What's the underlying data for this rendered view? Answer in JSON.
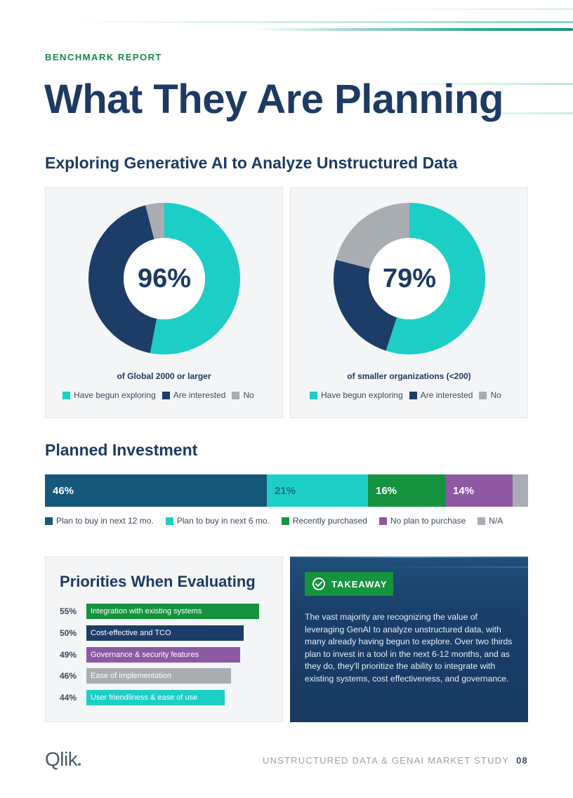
{
  "header": {
    "eyebrow": "BENCHMARK REPORT",
    "title": "What They Are Planning"
  },
  "exploring": {
    "heading": "Exploring Generative AI to Analyze Unstructured Data",
    "legend": [
      "Have begun exploring",
      "Are interested",
      "No"
    ],
    "colors": {
      "begun": "#1dcec6",
      "interested": "#1c3d67",
      "no": "#a8adb2"
    }
  },
  "chart_data": [
    {
      "type": "pie",
      "title": "96%",
      "caption": "of Global 2000 or larger",
      "categories": [
        "Have begun exploring",
        "Are interested",
        "No"
      ],
      "values": [
        53,
        43,
        4
      ]
    },
    {
      "type": "pie",
      "title": "79%",
      "caption": "of smaller organizations (<200)",
      "categories": [
        "Have begun exploring",
        "Are interested",
        "No"
      ],
      "values": [
        55,
        24,
        21
      ]
    },
    {
      "type": "bar",
      "title": "Planned Investment",
      "orientation": "horizontal-stacked",
      "categories": [
        "Plan to buy in next 12 mo.",
        "Plan to buy in next 6 mo.",
        "Recently purchased",
        "No plan to purchase",
        "N/A"
      ],
      "values": [
        46,
        21,
        16,
        14,
        3
      ],
      "labels": [
        "46%",
        "21%",
        "16%",
        "14%",
        ""
      ],
      "colors": [
        "#17577a",
        "#1dcec6",
        "#15933f",
        "#8e58a3",
        "#a8adb2"
      ],
      "label_colors": [
        "#ffffff",
        "#1c6e8a",
        "#ffffff",
        "#ffffff",
        "#ffffff"
      ]
    },
    {
      "type": "bar",
      "title": "Priorities When Evaluating",
      "orientation": "horizontal",
      "categories": [
        "Integration with existing systems",
        "Cost-effective and TCO",
        "Governance & security features",
        "Ease of implementation",
        "User friendliness & ease of use"
      ],
      "values": [
        55,
        50,
        49,
        46,
        44
      ],
      "labels": [
        "55%",
        "50%",
        "49%",
        "46%",
        "44%"
      ],
      "colors": [
        "#15933f",
        "#1c3d67",
        "#8e58a3",
        "#a8adb2",
        "#1dcec6"
      ]
    }
  ],
  "takeaway": {
    "badge": "TAKEAWAY",
    "text": "The vast majority are recognizing the value of leveraging GenAI to analyze unstructured data, with many already having begun to explore. Over two thirds plan to invest in a tool in the next 6-12 months, and as they do, they'll prioritize the ability to integrate with existing systems, cost effectiveness, and governance."
  },
  "footer": {
    "logo": "Qlik",
    "study": "UNSTRUCTURED DATA & GENAI MARKET STUDY",
    "page": "08"
  }
}
